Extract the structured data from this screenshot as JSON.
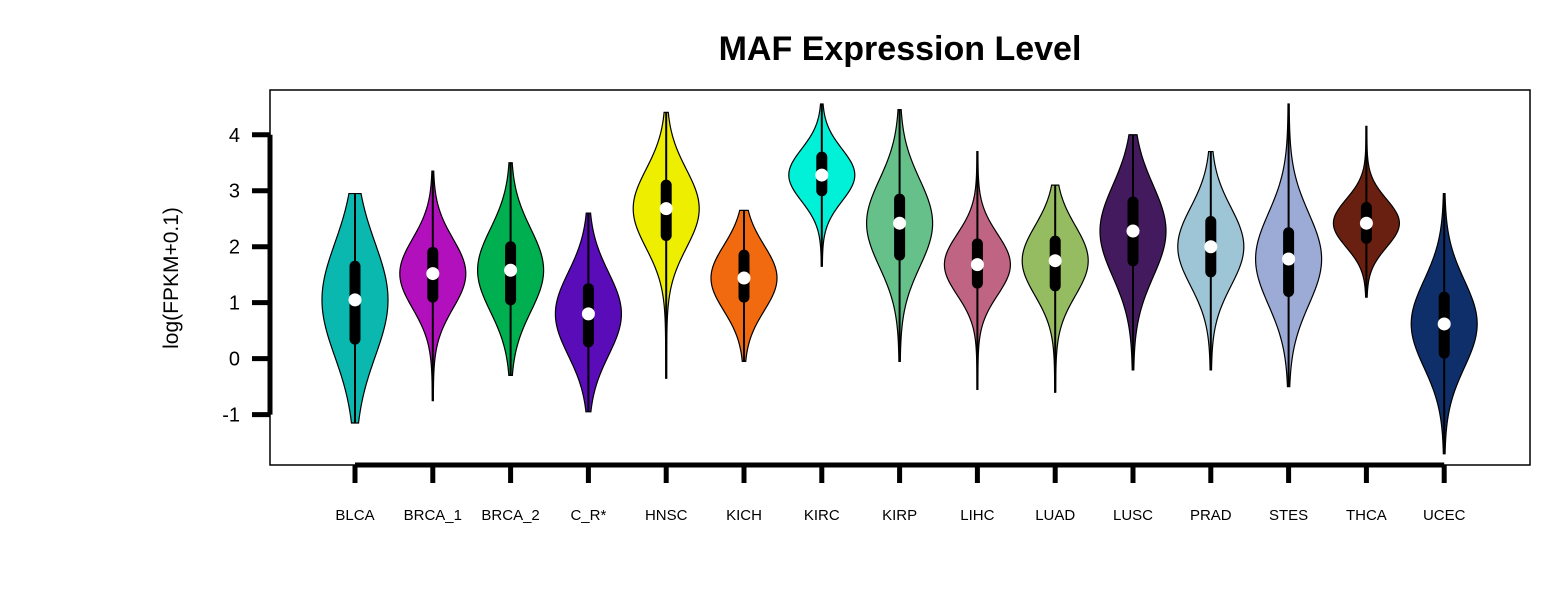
{
  "chart_data": {
    "type": "violin",
    "title": "MAF Expression Level",
    "xlabel": "",
    "ylabel": "log(FPKM+0.1)",
    "ylim": [
      -1.9,
      4.8
    ],
    "yticks": [
      "-1",
      "0",
      "1",
      "2",
      "3",
      "4"
    ],
    "grid": false,
    "legend": "none",
    "categories": [
      "BLCA",
      "BRCA_1",
      "BRCA_2",
      "C_R*",
      "HNSC",
      "KICH",
      "KIRC",
      "KIRP",
      "LIHC",
      "LUAD",
      "LUSC",
      "PRAD",
      "STES",
      "THCA",
      "UCEC"
    ],
    "series": [
      {
        "color": "#0ab8b0",
        "min": -1.15,
        "max": 2.95,
        "q1": 0.35,
        "q3": 1.65,
        "median": 1.05
      },
      {
        "color": "#b20fbd",
        "min": -0.75,
        "max": 3.35,
        "q1": 1.1,
        "q3": 1.9,
        "median": 1.52
      },
      {
        "color": "#00b050",
        "min": -0.3,
        "max": 3.5,
        "q1": 1.05,
        "q3": 2.0,
        "median": 1.58
      },
      {
        "color": "#5a0cb8",
        "min": -0.95,
        "max": 2.6,
        "q1": 0.3,
        "q3": 1.25,
        "median": 0.8
      },
      {
        "color": "#eeee00",
        "min": -0.35,
        "max": 4.4,
        "q1": 2.2,
        "q3": 3.1,
        "median": 2.68
      },
      {
        "color": "#f26a10",
        "min": -0.05,
        "max": 2.65,
        "q1": 1.1,
        "q3": 1.85,
        "median": 1.44
      },
      {
        "color": "#00f0d8",
        "min": 1.65,
        "max": 4.55,
        "q1": 3.0,
        "q3": 3.6,
        "median": 3.28
      },
      {
        "color": "#65c08a",
        "min": -0.05,
        "max": 4.45,
        "q1": 1.85,
        "q3": 2.85,
        "median": 2.42
      },
      {
        "color": "#bf6482",
        "min": -0.55,
        "max": 3.7,
        "q1": 1.35,
        "q3": 2.05,
        "median": 1.68
      },
      {
        "color": "#96bc62",
        "min": -0.6,
        "max": 3.1,
        "q1": 1.3,
        "q3": 2.1,
        "median": 1.75
      },
      {
        "color": "#441a5e",
        "min": -0.2,
        "max": 4.0,
        "q1": 1.75,
        "q3": 2.8,
        "median": 2.28
      },
      {
        "color": "#9ec5d6",
        "min": -0.2,
        "max": 3.7,
        "q1": 1.55,
        "q3": 2.45,
        "median": 2.0
      },
      {
        "color": "#9cabd6",
        "min": -0.5,
        "max": 4.55,
        "q1": 1.2,
        "q3": 2.25,
        "median": 1.78
      },
      {
        "color": "#6a2010",
        "min": 1.1,
        "max": 4.15,
        "q1": 2.15,
        "q3": 2.7,
        "median": 2.42
      },
      {
        "color": "#0f2f6a",
        "min": -1.7,
        "max": 2.95,
        "q1": 0.1,
        "q3": 1.1,
        "median": 0.62
      }
    ]
  }
}
